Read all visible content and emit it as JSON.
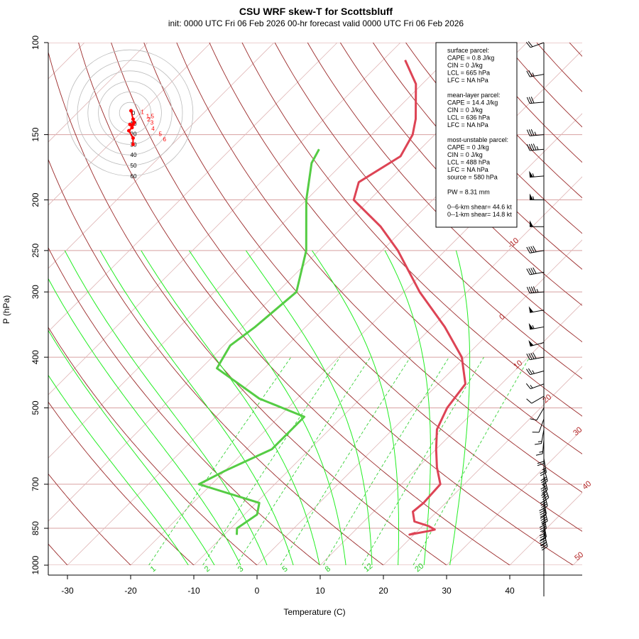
{
  "title": "CSU WRF skew-T for Scottsbluff",
  "subtitle": "init: 0000 UTC Fri 06 Feb 2026    00-hr forecast valid 0000 UTC Fri 06 Feb 2026",
  "chart_data": {
    "type": "line",
    "chart_kind": "skew-T log-P sounding",
    "xlabel": "Temperature (C)",
    "ylabel": "P (hPa)",
    "xlim": [
      -33,
      52
    ],
    "ylim": [
      1000,
      100
    ],
    "y_scale": "log",
    "x_ticks": [
      -30,
      -20,
      -10,
      0,
      10,
      20,
      30,
      40
    ],
    "y_ticks": [
      100,
      150,
      200,
      250,
      300,
      400,
      500,
      700,
      850,
      1000
    ],
    "isobars": [
      100,
      150,
      200,
      250,
      300,
      400,
      500,
      700,
      850,
      1000
    ],
    "isotherm_labels": [
      "-10",
      "0",
      "10",
      "20",
      "30",
      "40",
      "50"
    ],
    "mixing_ratio_labels": [
      "1",
      "2",
      "3",
      "5",
      "8",
      "12",
      "20"
    ],
    "series": [
      {
        "name": "",
        "color": "#dd4455",
        "points": [
          [
            867,
            20
          ],
          [
            874,
            19.3
          ],
          [
            860,
            21.8
          ],
          [
            855,
            22.5
          ],
          [
            842,
            21
          ],
          [
            825,
            18
          ],
          [
            790,
            16.2
          ],
          [
            760,
            16.5
          ],
          [
            700,
            16.2
          ],
          [
            650,
            13
          ],
          [
            600,
            10
          ],
          [
            550,
            7
          ],
          [
            500,
            5.2
          ],
          [
            450,
            4.3
          ],
          [
            400,
            -0.5
          ],
          [
            350,
            -8
          ],
          [
            300,
            -17.5
          ],
          [
            250,
            -27.5
          ],
          [
            225,
            -34
          ],
          [
            200,
            -42.5
          ],
          [
            185,
            -44.5
          ],
          [
            165,
            -42
          ],
          [
            150,
            -43.5
          ],
          [
            140,
            -45.5
          ],
          [
            120,
            -51
          ],
          [
            108,
            -56.5
          ]
        ]
      },
      {
        "name": "",
        "color": "#55cc44",
        "points": [
          [
            875,
            -8
          ],
          [
            850,
            -9
          ],
          [
            800,
            -8
          ],
          [
            760,
            -9.5
          ],
          [
            700,
            -22
          ],
          [
            660,
            -20
          ],
          [
            600,
            -16
          ],
          [
            520,
            -16
          ],
          [
            480,
            -26
          ],
          [
            420,
            -37.5
          ],
          [
            380,
            -39
          ],
          [
            350,
            -38
          ],
          [
            300,
            -37
          ],
          [
            250,
            -42
          ],
          [
            200,
            -50
          ],
          [
            170,
            -55
          ],
          [
            160,
            -56
          ]
        ]
      }
    ],
    "hodograph": {
      "ring_labels": [
        "0",
        "10",
        "20",
        "30",
        "40",
        "50",
        "60"
      ],
      "points": [
        [
          1,
          -2
        ],
        [
          3,
          6
        ],
        [
          4,
          9
        ],
        [
          3,
          11
        ],
        [
          0,
          11
        ],
        [
          2,
          14
        ],
        [
          -1,
          17
        ],
        [
          3,
          24
        ],
        [
          3,
          30
        ]
      ],
      "point_labels": [
        "1",
        "1.5",
        "2",
        "3",
        "4",
        "5",
        "6"
      ]
    },
    "wind_barbs": [
      [
        867,
        165,
        28
      ],
      [
        850,
        170,
        30
      ],
      [
        830,
        170,
        35
      ],
      [
        800,
        170,
        35
      ],
      [
        775,
        165,
        38
      ],
      [
        750,
        170,
        42
      ],
      [
        725,
        165,
        40
      ],
      [
        700,
        160,
        38
      ],
      [
        675,
        165,
        35
      ],
      [
        650,
        165,
        30
      ],
      [
        625,
        170,
        25
      ],
      [
        600,
        180,
        20
      ],
      [
        575,
        185,
        15
      ],
      [
        550,
        190,
        15
      ],
      [
        525,
        200,
        12
      ],
      [
        500,
        210,
        10
      ],
      [
        475,
        240,
        10
      ],
      [
        450,
        250,
        15
      ],
      [
        425,
        255,
        25
      ],
      [
        400,
        260,
        40
      ],
      [
        375,
        255,
        50
      ],
      [
        350,
        260,
        55
      ],
      [
        325,
        260,
        50
      ],
      [
        300,
        265,
        45
      ],
      [
        275,
        260,
        40
      ],
      [
        250,
        260,
        38
      ],
      [
        225,
        270,
        50
      ],
      [
        200,
        270,
        55
      ],
      [
        180,
        265,
        55
      ],
      [
        160,
        265,
        45
      ],
      [
        150,
        265,
        35
      ],
      [
        130,
        265,
        30
      ],
      [
        115,
        260,
        25
      ],
      [
        100,
        250,
        20
      ]
    ]
  },
  "info_box": {
    "lines": [
      "surface parcel:",
      "CAPE = 0.8 J/kg",
      "CIN = 0 J/kg",
      "LCL = 665 hPa",
      "LFC = NA hPa",
      "",
      "mean-layer parcel:",
      "CAPE = 14.4 J/kg",
      "CIN = 0 J/kg",
      "LCL = 636 hPa",
      "LFC = NA hPa",
      "",
      "most-unstable parcel:",
      "CAPE = 0 J/kg",
      "CIN = 0 J/kg",
      "LCL = 488 hPa",
      "LFC = NA hPa",
      "source = 580 hPa",
      "",
      "PW =  8.31 mm",
      "",
      "0--6-km shear= 44.6 kt",
      "0--1-km shear= 14.8 kt"
    ]
  },
  "colors": {
    "isobar": "#d8a0a0",
    "isotherm": "#e0b8b8",
    "dry_adiabat": "#9b2a2a",
    "moist_adiabat": "#22ee22",
    "mixing_ratio": "#22cc22",
    "temperature": "#dd4455",
    "dewpoint": "#55cc44",
    "hodograph": "#ff0000"
  }
}
